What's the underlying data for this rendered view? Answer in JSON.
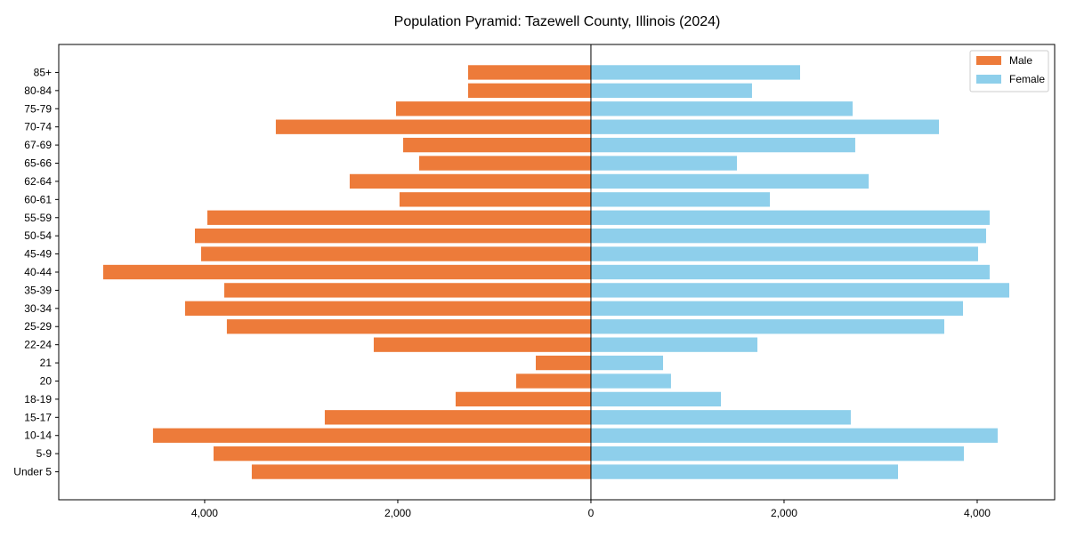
{
  "chart_data": {
    "type": "bar",
    "orientation": "horizontal-pyramid",
    "title": "Population Pyramid: Tazewell County, Illinois (2024)",
    "xlabel": "",
    "ylabel": "",
    "xlim": [
      -5511,
      4802
    ],
    "xticks": [
      -4000,
      -2000,
      0,
      2000,
      4000
    ],
    "xtick_labels": [
      "4,000",
      "2,000",
      "0",
      "2,000",
      "4,000"
    ],
    "grid": false,
    "legend_position": "top-right",
    "categories": [
      "Under 5",
      "5-9",
      "10-14",
      "15-17",
      "18-19",
      "20",
      "21",
      "22-24",
      "25-29",
      "30-34",
      "35-39",
      "40-44",
      "45-49",
      "50-54",
      "55-59",
      "60-61",
      "62-64",
      "65-66",
      "67-69",
      "70-74",
      "75-79",
      "80-84",
      "85+"
    ],
    "series": [
      {
        "name": "Male",
        "color": "#ED7B3A",
        "values": [
          3512,
          3908,
          4535,
          2756,
          1401,
          774,
          571,
          2249,
          3770,
          4203,
          3797,
          5051,
          4037,
          4101,
          3972,
          1982,
          2498,
          1779,
          1945,
          3263,
          2018,
          1272,
          1272
        ]
      },
      {
        "name": "Female",
        "color": "#8ECFEB",
        "values": [
          3180,
          3862,
          4212,
          2691,
          1346,
          829,
          747,
          1724,
          3659,
          3853,
          4332,
          4129,
          4009,
          4092,
          4129,
          1853,
          2876,
          1512,
          2737,
          3604,
          2710,
          1668,
          2166
        ]
      }
    ]
  }
}
